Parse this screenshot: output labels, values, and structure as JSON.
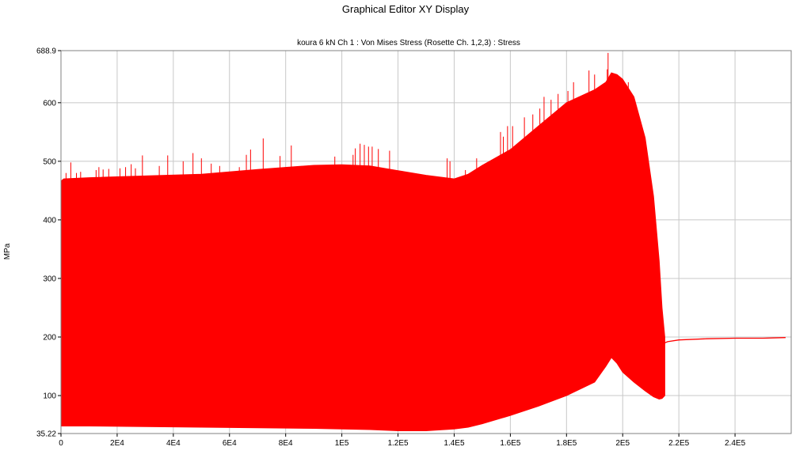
{
  "window": {
    "title": "Graphical Editor XY Display"
  },
  "chart_data": {
    "type": "line",
    "title": "koura 6 kN  Ch 1 : Von Mises Stress (Rosette Ch. 1,2,3) : Stress",
    "xlabel": "",
    "ylabel": "MPa",
    "xlim": [
      0,
      260000
    ],
    "ylim": [
      35.22,
      688.9
    ],
    "x_ticks": [
      {
        "value": 0,
        "label": "0"
      },
      {
        "value": 20000,
        "label": "2E4"
      },
      {
        "value": 40000,
        "label": "4E4"
      },
      {
        "value": 60000,
        "label": "6E4"
      },
      {
        "value": 80000,
        "label": "8E4"
      },
      {
        "value": 100000,
        "label": "1E5"
      },
      {
        "value": 120000,
        "label": "1.2E5"
      },
      {
        "value": 140000,
        "label": "1.4E5"
      },
      {
        "value": 160000,
        "label": "1.6E5"
      },
      {
        "value": 180000,
        "label": "1.8E5"
      },
      {
        "value": 200000,
        "label": "2E5"
      },
      {
        "value": 220000,
        "label": "2.2E5"
      },
      {
        "value": 240000,
        "label": "2.4E5"
      }
    ],
    "y_ticks": [
      {
        "value": 35.22,
        "label": "35.22"
      },
      {
        "value": 100,
        "label": "100"
      },
      {
        "value": 200,
        "label": "200"
      },
      {
        "value": 300,
        "label": "300"
      },
      {
        "value": 400,
        "label": "400"
      },
      {
        "value": 500,
        "label": "500"
      },
      {
        "value": 600,
        "label": "600"
      },
      {
        "value": 688.9,
        "label": "688.9"
      }
    ],
    "grid": true,
    "color": "#ff0000",
    "series": [
      {
        "name": "",
        "envelope_x": [
          0,
          1000,
          10000,
          30000,
          50000,
          70000,
          90000,
          100000,
          110000,
          120000,
          130000,
          140000,
          145000,
          150000,
          160000,
          170000,
          180000,
          190000,
          194000,
          196000,
          198000,
          200000,
          204000,
          208000,
          211000,
          213000,
          214000,
          215000
        ],
        "upper": [
          466,
          470,
          472,
          475,
          478,
          486,
          493,
          494,
          492,
          484,
          476,
          470,
          478,
          493,
          520,
          560,
          600,
          622,
          635,
          651,
          648,
          640,
          610,
          540,
          440,
          330,
          250,
          200
        ],
        "lower": [
          48,
          48,
          48,
          47,
          46,
          45,
          44,
          43,
          42,
          40,
          40,
          43,
          46,
          52,
          66,
          82,
          100,
          123,
          150,
          165,
          155,
          140,
          123,
          108,
          98,
          94,
          95,
          100
        ],
        "spikes_x": [
          1800,
          3500,
          5500,
          7000,
          12500,
          13500,
          15000,
          17000,
          21000,
          23000,
          25000,
          26500,
          29000,
          35000,
          38000,
          43500,
          47000,
          50000,
          53500,
          56500,
          63500,
          66000,
          67500,
          72000,
          78000,
          82000,
          97500,
          104000,
          104800,
          106500,
          108000,
          109500,
          110800,
          113000,
          117000,
          137500,
          138500,
          144000,
          148000,
          155000,
          156500,
          157500,
          159000,
          160800,
          165000,
          168000,
          170500,
          172000,
          174500,
          177000,
          180500,
          182500,
          188000,
          190000,
          194500,
          194800,
          202000
        ],
        "spikes_y": [
          480,
          498,
          480,
          482,
          485,
          490,
          486,
          487,
          488,
          490,
          495,
          488,
          510,
          492,
          510,
          500,
          514,
          505,
          496,
          492,
          490,
          511,
          520,
          539,
          509,
          527,
          508,
          511,
          522,
          530,
          528,
          525,
          525,
          521,
          518,
          505,
          500,
          485,
          505,
          505,
          550,
          542,
          560,
          560,
          575,
          580,
          590,
          610,
          605,
          615,
          620,
          635,
          655,
          648,
          657,
          685,
          635
        ],
        "tail_x": [
          215000,
          216000,
          220000,
          230000,
          240000,
          250000,
          258000
        ],
        "tail_y": [
          190,
          192,
          195,
          197,
          198,
          198,
          199
        ]
      }
    ]
  }
}
